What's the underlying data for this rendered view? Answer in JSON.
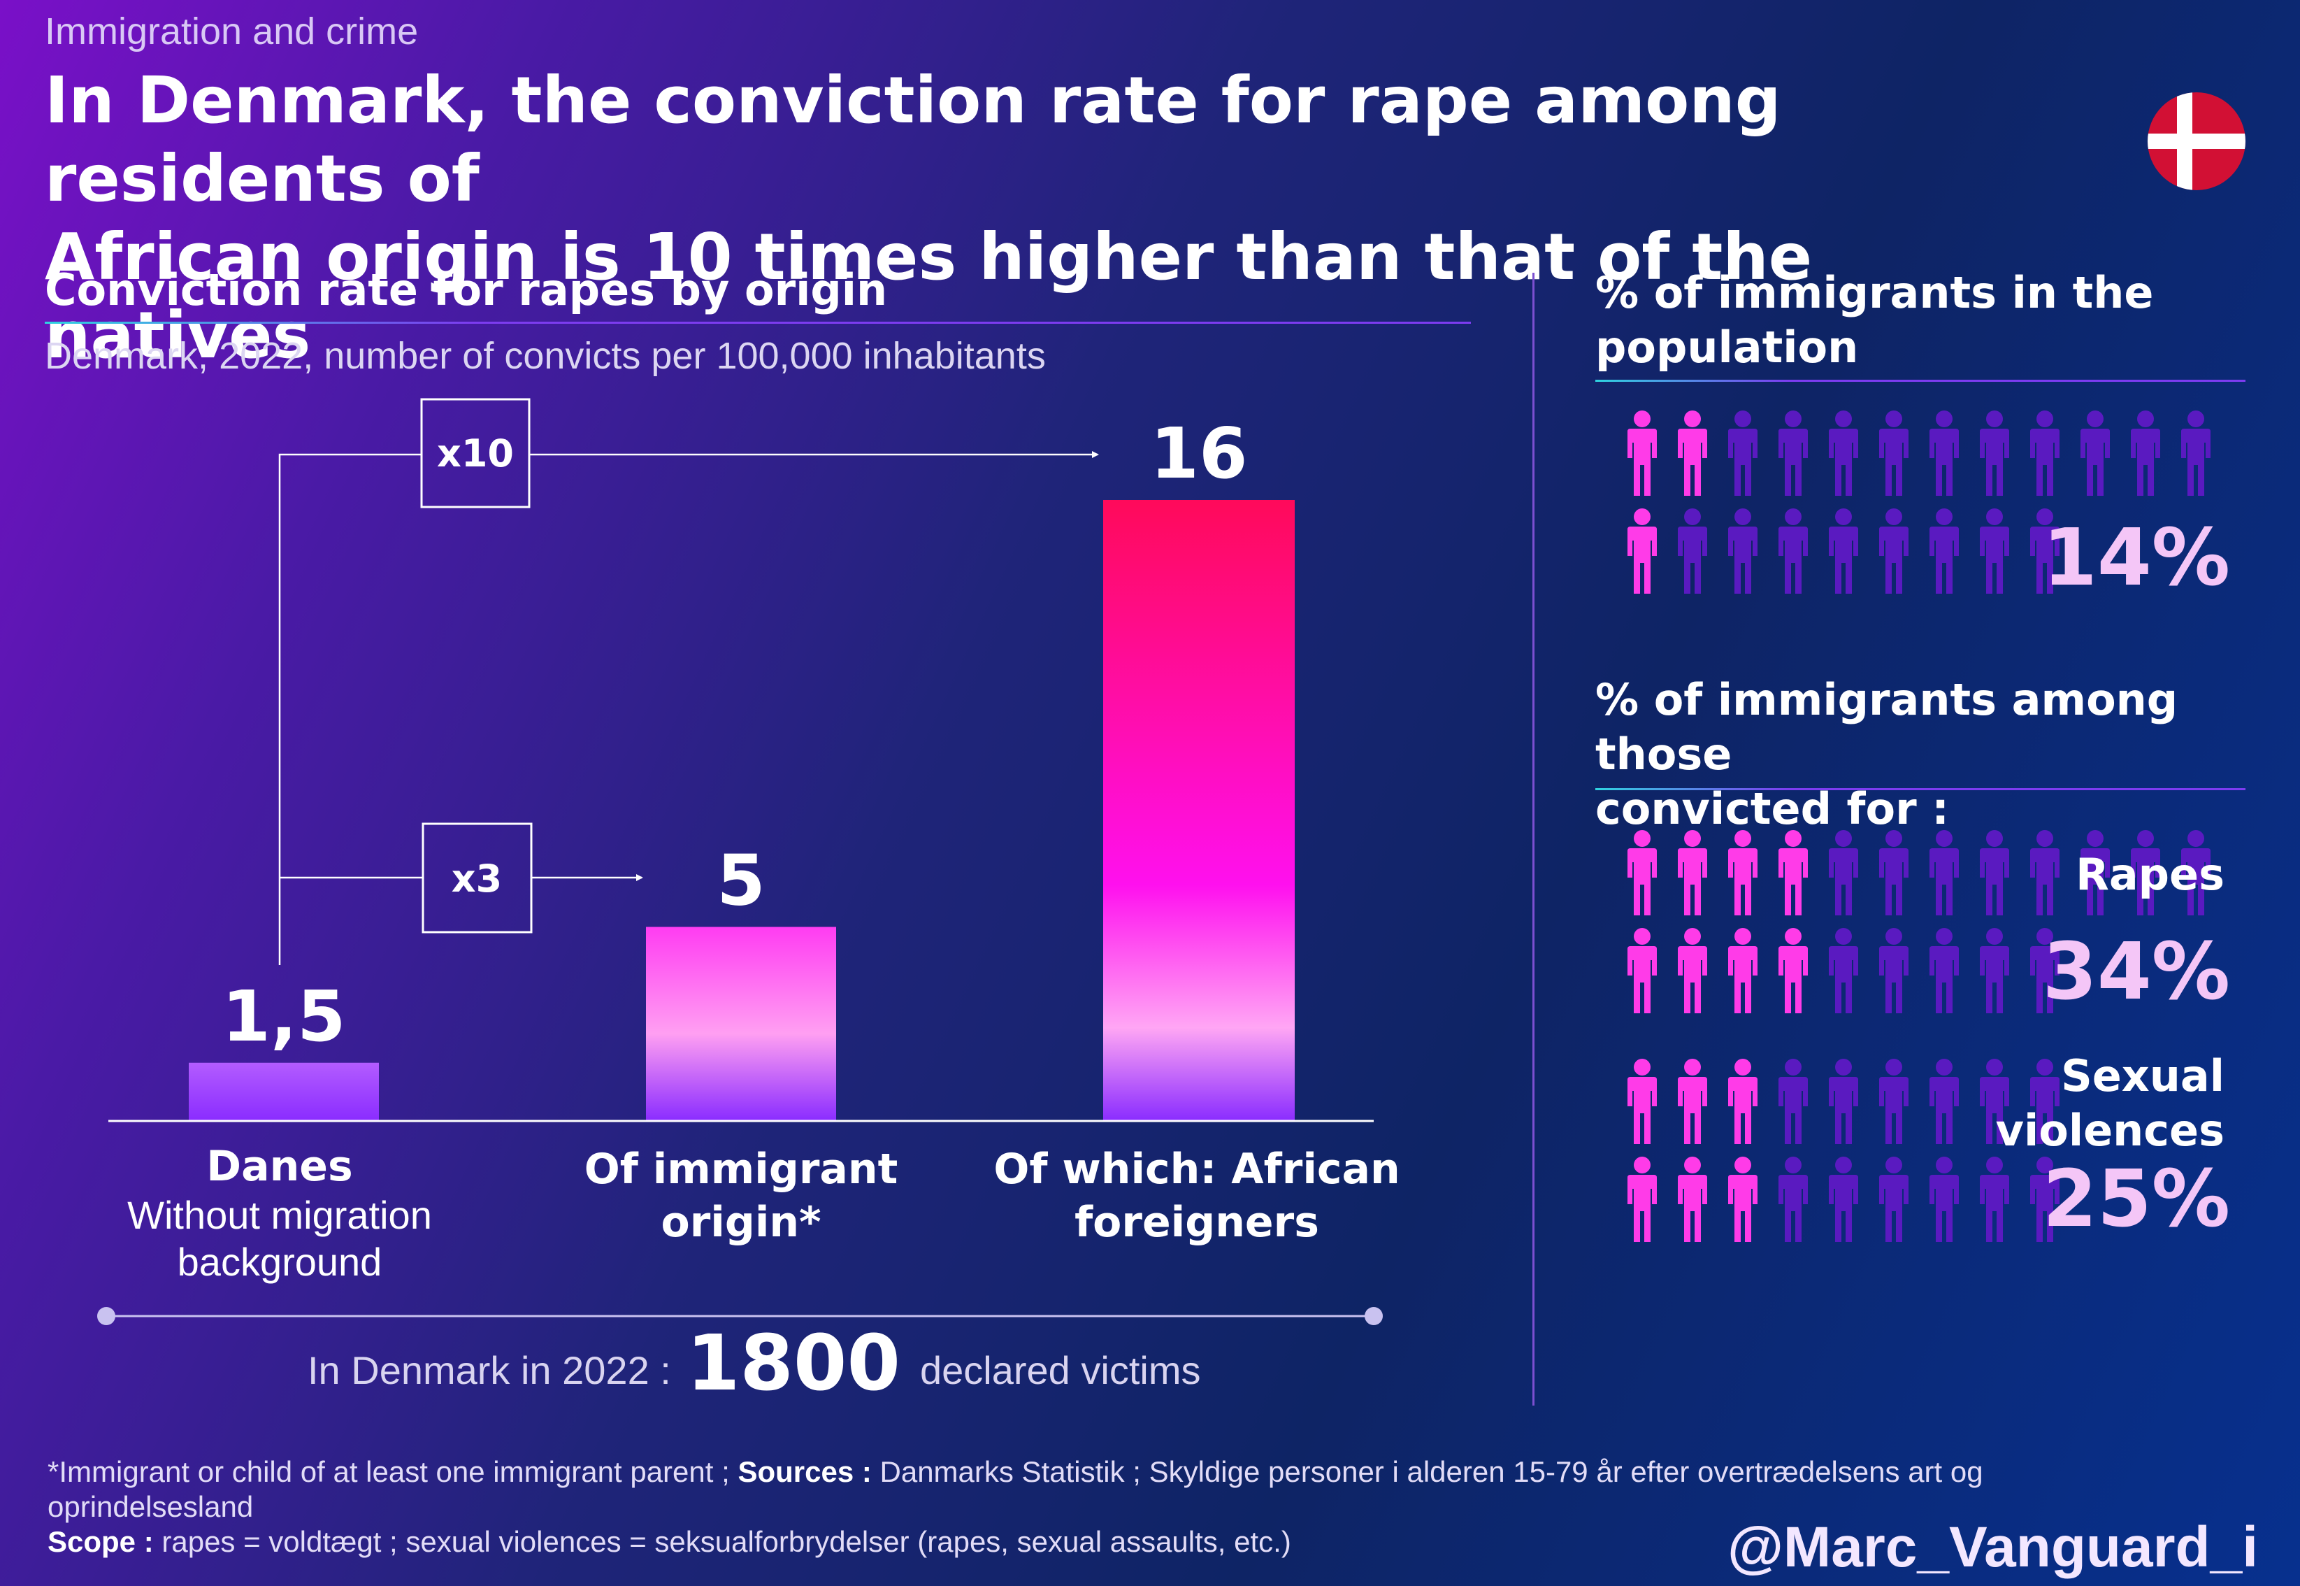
{
  "kicker": "Immigration and crime",
  "headline_line1": "In Denmark, the conviction rate for rape among residents of",
  "headline_line2": "African origin is 10 times higher than that of the natives",
  "chart_data": [
    {
      "type": "bar",
      "title": "Conviction rate for rapes by origin",
      "subtitle": "Denmark, 2022, number of convicts per 100,000 inhabitants",
      "categories": [
        "Danes",
        "Of immigrant origin*",
        "Of which: African foreigners"
      ],
      "category_notes": [
        "Without migration background",
        "",
        ""
      ],
      "values": [
        1.5,
        5,
        16
      ],
      "value_labels": [
        "1,5",
        "5",
        "16"
      ],
      "annotations": [
        "x10",
        "x3"
      ],
      "ylim": [
        0,
        16
      ],
      "grid": false
    }
  ],
  "labels": {
    "cat0_line1": "Danes",
    "cat0_line2": "Without migration",
    "cat0_line3": "background",
    "cat1_line1": "Of immigrant",
    "cat1_line2": "origin*",
    "cat2_line1": "Of which: African",
    "cat2_line2": "foreigners"
  },
  "victims": {
    "prefix": "In Denmark in 2022 :",
    "number": "1800",
    "suffix": "declared victims"
  },
  "right_panel": {
    "population_title_line1": "% of immigrants in the",
    "population_title_line2": "population",
    "population_pct": "14%",
    "population_value": 14,
    "convicted_title_line1": "% of immigrants among those",
    "convicted_title_line2": "convicted for :",
    "rapes_label": "Rapes",
    "rapes_pct": "34%",
    "rapes_value": 34,
    "sexual_label_line1": "Sexual",
    "sexual_label_line2": "violences",
    "sexual_pct": "25%",
    "sexual_value": 25
  },
  "footnote": {
    "line1_a": "*Immigrant or child of at least one immigrant parent ; ",
    "line1_b": "Sources :",
    "line1_c": " Danmarks Statistik ; Skyldige personer i alderen 15-79 år efter overtrædelsens art og",
    "line2": "oprindelsesland",
    "line3_a": "Scope :",
    "line3_b": " rapes = voldtægt ; sexual violences = seksualforbrydelser (rapes, sexual assaults, etc.)"
  },
  "handle": "@Marc_Vanguard_i",
  "colors": {
    "accent_pink": "#ff2cf0",
    "bar_top": "#ff0a5a",
    "person_highlight": "#ff3be8",
    "person_dim": "#5a1ac0"
  }
}
